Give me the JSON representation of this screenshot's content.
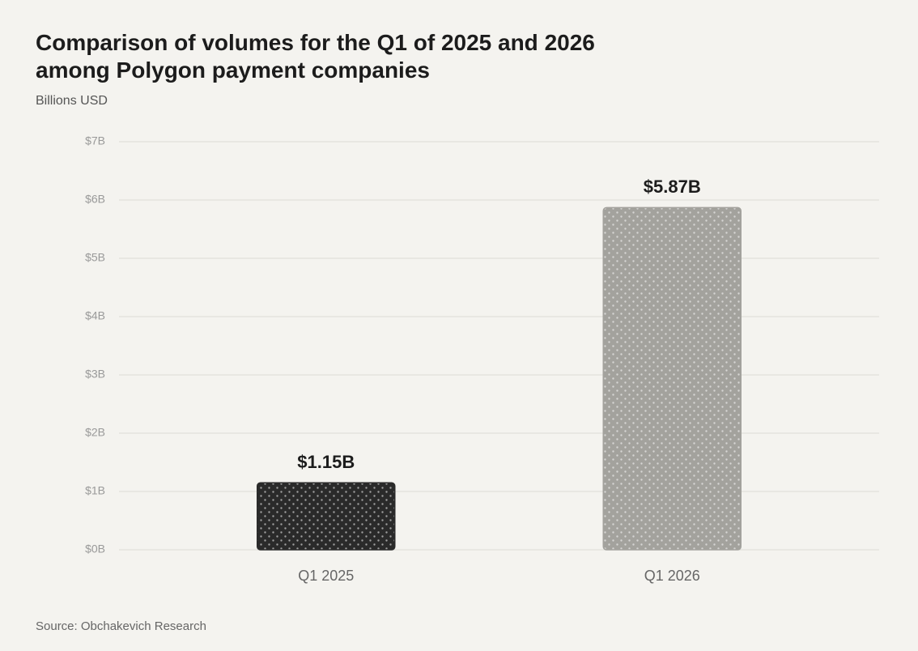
{
  "chart_data": {
    "type": "bar",
    "title": "Comparison of volumes for the Q1 of 2025 and 2026 among Polygon payment companies",
    "subtitle": "Billions USD",
    "source": "Source: Obchakevich Research",
    "categories": [
      "Q1 2025",
      "Q1 2026"
    ],
    "values": [
      1.15,
      5.87
    ],
    "value_labels": [
      "$1.15B",
      "$5.87B"
    ],
    "colors": [
      "#2a2a2a",
      "#a3a29d"
    ],
    "ylim": [
      0,
      7
    ],
    "yticks": [
      {
        "value": 0,
        "label": "$0B"
      },
      {
        "value": 1,
        "label": "$1B"
      },
      {
        "value": 2,
        "label": "$2B"
      },
      {
        "value": 3,
        "label": "$3B"
      },
      {
        "value": 4,
        "label": "$4B"
      },
      {
        "value": 5,
        "label": "$5B"
      },
      {
        "value": 6,
        "label": "$6B"
      },
      {
        "value": 7,
        "label": "$7B"
      }
    ],
    "grid": true
  }
}
